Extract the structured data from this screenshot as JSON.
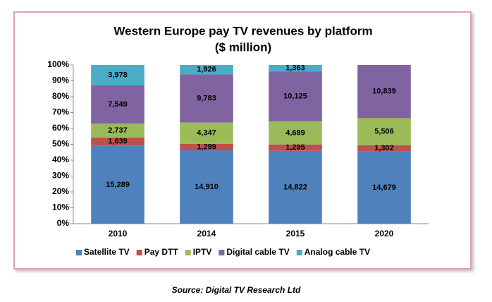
{
  "chart_data": {
    "type": "bar",
    "stacked": "percent",
    "title": "Western Europe pay TV revenues by platform",
    "subtitle": "($ million)",
    "source": "Source: Digital TV Research Ltd",
    "categories": [
      "2010",
      "2014",
      "2015",
      "2020"
    ],
    "series": [
      {
        "name": "Satellite TV",
        "color": "#4f81bd",
        "values": [
          15289,
          14910,
          14822,
          14679
        ],
        "value_labels": [
          "15,289",
          "14,910",
          "14,822",
          "14,679"
        ]
      },
      {
        "name": "Pay DTT",
        "color": "#c0504d",
        "values": [
          1639,
          1299,
          1295,
          1302
        ],
        "value_labels": [
          "1,639",
          "1,299",
          "1,295",
          "1,302"
        ]
      },
      {
        "name": "IPTV",
        "color": "#9bbb59",
        "values": [
          2737,
          4347,
          4689,
          5506
        ],
        "value_labels": [
          "2,737",
          "4,347",
          "4,689",
          "5,506"
        ]
      },
      {
        "name": "Digital cable TV",
        "color": "#8064a2",
        "values": [
          7549,
          9783,
          10125,
          10839
        ],
        "value_labels": [
          "7,549",
          "9,783",
          "10,125",
          "10,839"
        ]
      },
      {
        "name": "Analog cable TV",
        "color": "#4bacc6",
        "values": [
          3978,
          1926,
          1363,
          null
        ],
        "value_labels": [
          "3,978",
          "1,926",
          "1,363",
          null
        ]
      }
    ],
    "ylim": [
      0,
      100
    ],
    "yticks": [
      {
        "value": 0,
        "label": "0%"
      },
      {
        "value": 10,
        "label": "10%"
      },
      {
        "value": 20,
        "label": "20%"
      },
      {
        "value": 30,
        "label": "30%"
      },
      {
        "value": 40,
        "label": "40%"
      },
      {
        "value": 50,
        "label": "50%"
      },
      {
        "value": 60,
        "label": "60%"
      },
      {
        "value": 70,
        "label": "70%"
      },
      {
        "value": 80,
        "label": "80%"
      },
      {
        "value": 90,
        "label": "90%"
      },
      {
        "value": 100,
        "label": "100%"
      }
    ],
    "grid": false,
    "legend": "bottom"
  }
}
